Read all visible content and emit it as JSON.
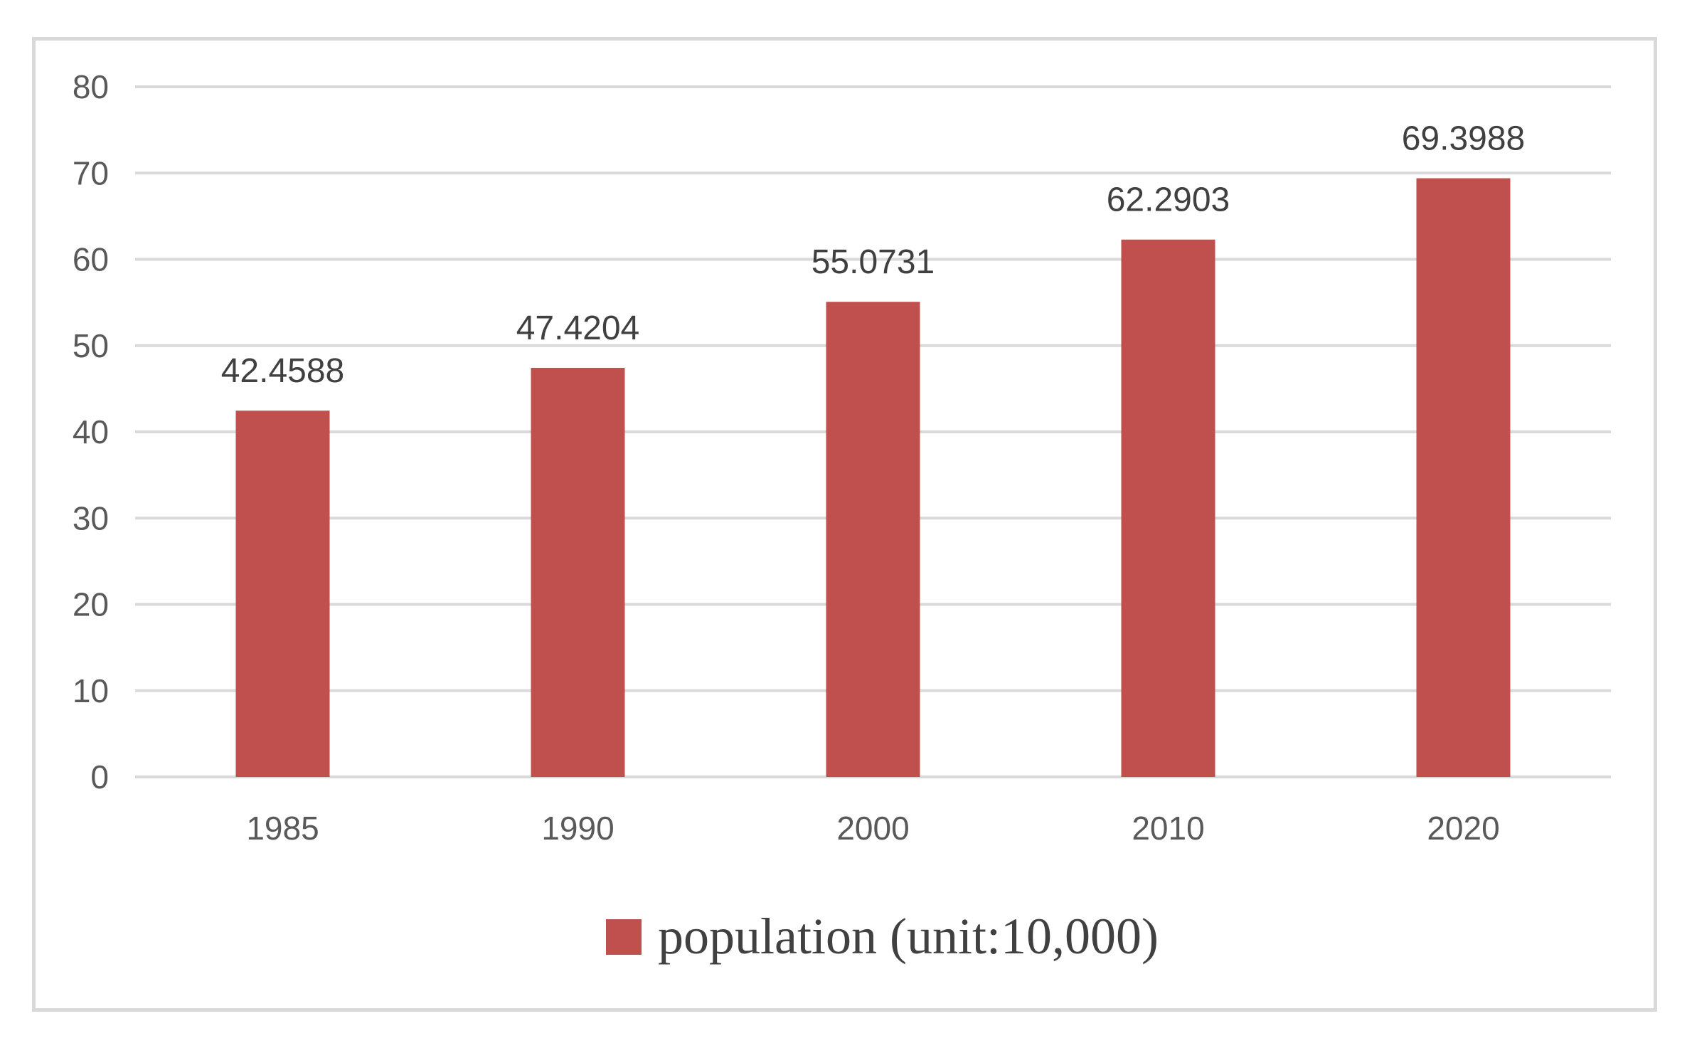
{
  "chart_data": {
    "type": "bar",
    "title": "",
    "xlabel": "",
    "ylabel": "",
    "categories": [
      "1985",
      "1990",
      "2000",
      "2010",
      "2020"
    ],
    "series": [
      {
        "name": "population (unit:10,000)",
        "values": [
          42.4588,
          47.4204,
          55.0731,
          62.2903,
          69.3988
        ],
        "value_labels": [
          "42.4588",
          "47.4204",
          "55.0731",
          "62.2903",
          "69.3988"
        ]
      }
    ],
    "ylim": [
      0,
      80
    ],
    "yticks": [
      0,
      10,
      20,
      30,
      40,
      50,
      60,
      70,
      80
    ],
    "grid": true,
    "legend_position": "bottom-center",
    "colors": {
      "bar": "#c0504d",
      "grid": "#d9d9d9",
      "frame": "#d9d9d9"
    }
  }
}
